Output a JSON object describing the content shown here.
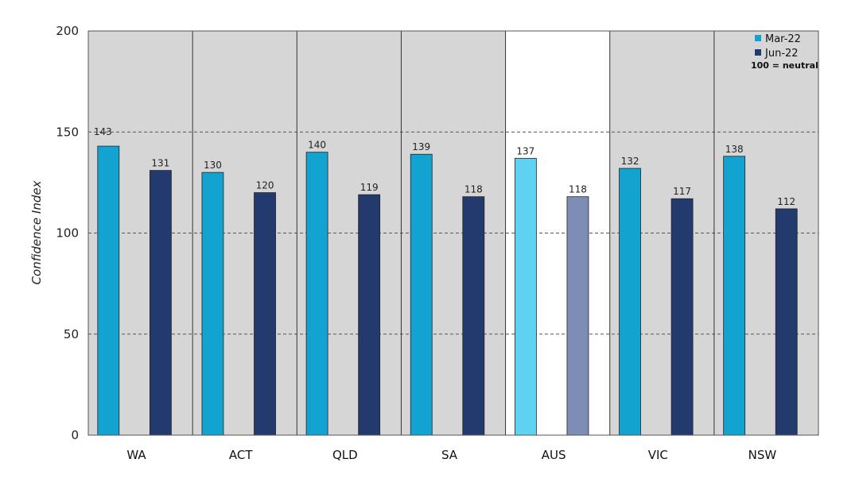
{
  "chart_data": {
    "type": "bar",
    "title": "",
    "xlabel": "",
    "ylabel": "Confidence Index",
    "ylim": [
      0,
      200
    ],
    "yticks": [
      0,
      50,
      100,
      150,
      200
    ],
    "categories": [
      "WA",
      "ACT",
      "QLD",
      "SA",
      "AUS",
      "VIC",
      "NSW"
    ],
    "highlight_category": "AUS",
    "series": [
      {
        "name": "Mar-22",
        "values": [
          143,
          130,
          140,
          139,
          137,
          132,
          138
        ],
        "color": "#13a3d1",
        "highlight_color": "#5fd2f2"
      },
      {
        "name": "Jun-22",
        "values": [
          131,
          120,
          119,
          118,
          118,
          117,
          112
        ],
        "color": "#233a6e",
        "highlight_color": "#7d8db5"
      }
    ],
    "grid": "horizontal dashed",
    "legend": {
      "position": "top-right",
      "note": "100 = neutral"
    },
    "colors": {
      "panel_bg": "#d6d6d6",
      "highlight_bg": "#ffffff"
    }
  }
}
